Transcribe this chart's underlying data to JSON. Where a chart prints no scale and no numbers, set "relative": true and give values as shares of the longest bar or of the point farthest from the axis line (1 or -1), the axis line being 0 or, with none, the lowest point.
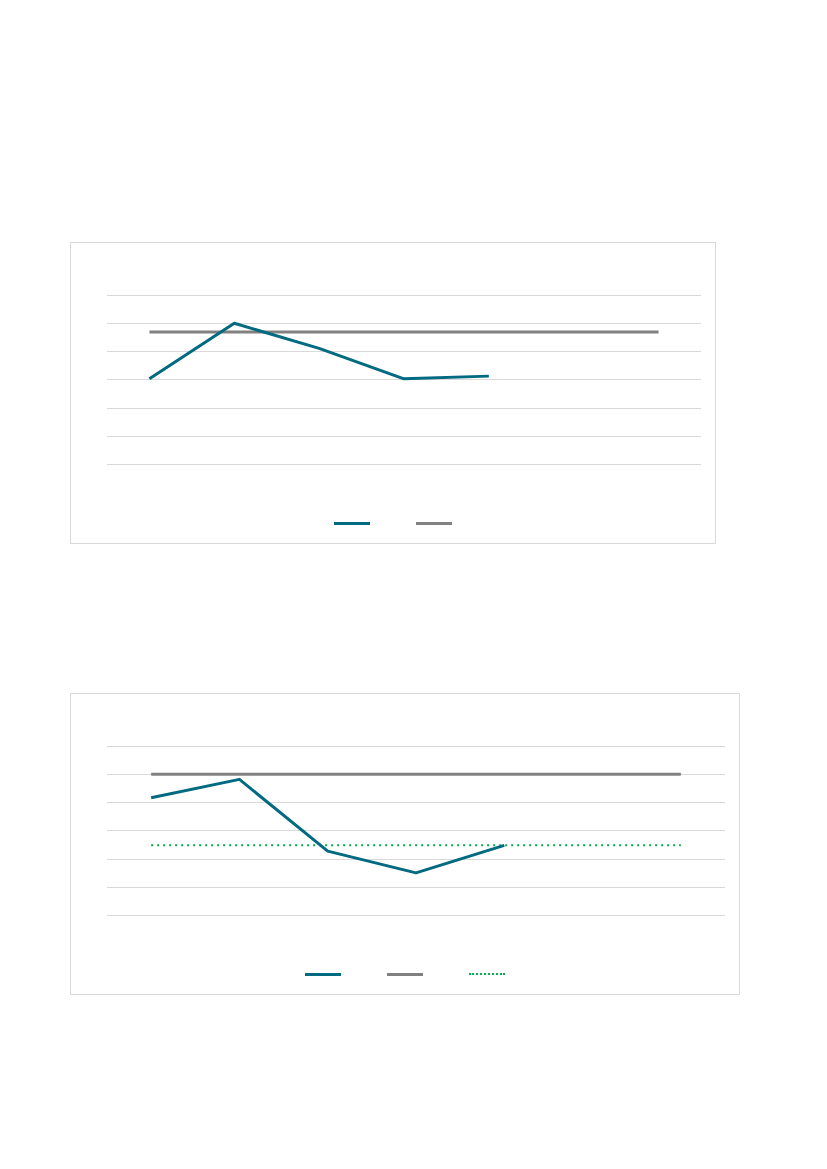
{
  "chart_data": [
    {
      "type": "line",
      "relative": true,
      "categories": [
        null,
        null,
        null,
        null,
        null,
        null,
        null
      ],
      "grid": "y",
      "marker": "none",
      "series": [
        {
          "color": "#006a80",
          "values": [
            0.607,
            1,
            0.822,
            0.607,
            0.626,
            null,
            null
          ]
        },
        {
          "color": "#808080",
          "values": [
            0.939,
            0.939,
            0.939,
            0.939,
            0.939,
            0.939,
            0.939
          ]
        }
      ]
    },
    {
      "type": "line",
      "relative": true,
      "categories": [
        null,
        null,
        null,
        null,
        null,
        null,
        null
      ],
      "grid": "y",
      "marker": "none",
      "series": [
        {
          "color": "#006a80",
          "values": [
            0.834,
            0.964,
            0.456,
            0.302,
            0.497,
            null,
            null
          ]
        },
        {
          "color": "#808080",
          "values": [
            1,
            1,
            1,
            1,
            1,
            1,
            1
          ]
        },
        {
          "color": "#00b050",
          "line_style": "dotted",
          "values": [
            0.497,
            0.497,
            0.497,
            0.497,
            0.497,
            0.497,
            0.497
          ]
        }
      ]
    }
  ]
}
